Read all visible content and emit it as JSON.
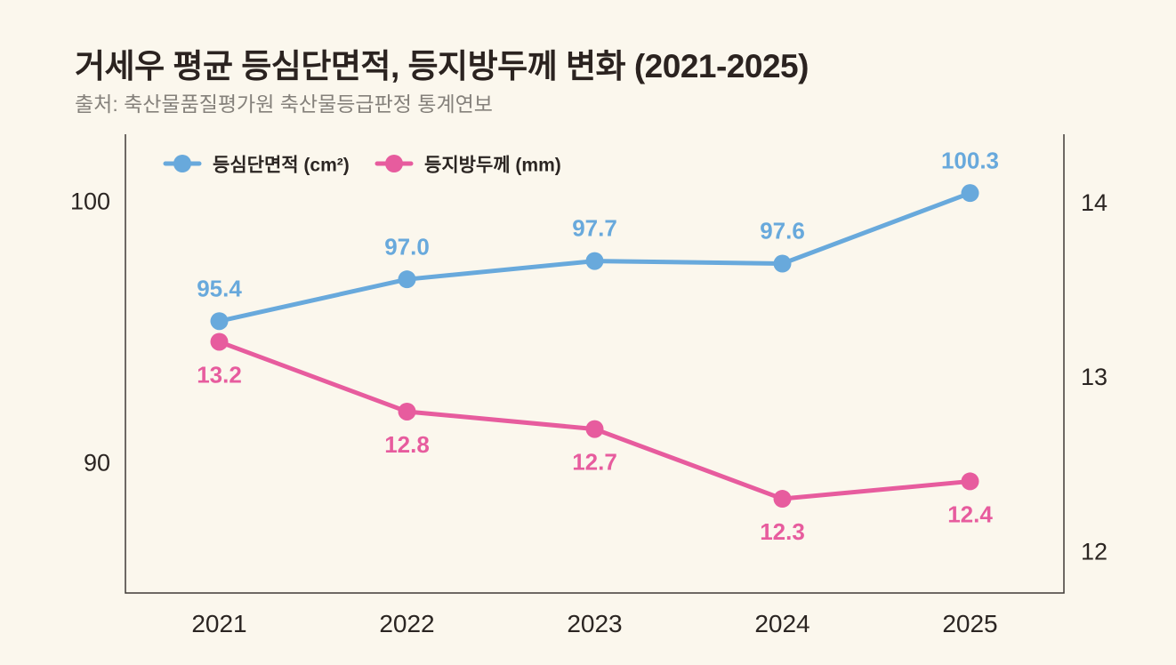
{
  "header": {
    "title": "거세우 평균 등심단면적, 등지방두께 변화 (2021-2025)",
    "source": "출처: 축산물품질평가원 축산물등급판정 통계연보"
  },
  "colors": {
    "background": "#FBF7ED",
    "axis_line": "#3F3A36",
    "tick_text": "#2B2522",
    "muted_text": "#85817B",
    "loin_area_blue": "#68A9DC",
    "backfat_pink": "#E75C9E"
  },
  "chart_data": {
    "type": "line",
    "categories": [
      "2021",
      "2022",
      "2023",
      "2024",
      "2025"
    ],
    "series": [
      {
        "key": "loin-area",
        "name": "등심단면적 (cm²)",
        "axis": "left",
        "color": "#68A9DC",
        "values": [
          95.4,
          97.0,
          97.7,
          97.6,
          100.3
        ],
        "label_position": "above"
      },
      {
        "key": "backfat",
        "name": "등지방두께 (mm)",
        "axis": "right",
        "color": "#E75C9E",
        "values": [
          13.2,
          12.8,
          12.7,
          12.3,
          12.4
        ],
        "label_position": "below"
      }
    ],
    "left_axis": {
      "ticks": [
        100,
        90
      ],
      "range": [
        85.0,
        102.55
      ]
    },
    "right_axis": {
      "ticks": [
        14,
        13,
        12
      ],
      "range": [
        11.76,
        14.39
      ]
    },
    "legend_position": "top-left-inside",
    "grid": false,
    "value_labels": true
  }
}
